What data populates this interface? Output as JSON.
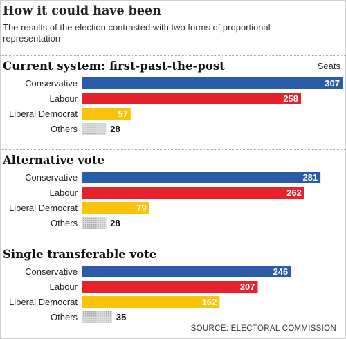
{
  "header": {
    "title": "How it could have been",
    "subtitle": "The results of the election contrasted with two forms of proportional representation"
  },
  "units_label": "Seats",
  "source": "SOURCE: ELECTORAL COMMISSION",
  "colors": {
    "Conservative": "#2a5caa",
    "Labour": "#e5222b",
    "Liberal Democrat": "#fcc30b",
    "Others": "#c4c4c4",
    "light_text": "#ffffff",
    "dark_text": "#111111"
  },
  "chart_data": [
    {
      "type": "bar",
      "orientation": "horizontal",
      "title": "Current system: first-past-the-post",
      "categories": [
        "Conservative",
        "Labour",
        "Liberal Democrat",
        "Others"
      ],
      "values": [
        307,
        258,
        57,
        28
      ]
    },
    {
      "type": "bar",
      "orientation": "horizontal",
      "title": "Alternative vote",
      "categories": [
        "Conservative",
        "Labour",
        "Liberal Democrat",
        "Others"
      ],
      "values": [
        281,
        262,
        79,
        28
      ]
    },
    {
      "type": "bar",
      "orientation": "horizontal",
      "title": "Single transferable vote",
      "categories": [
        "Conservative",
        "Labour",
        "Liberal Democrat",
        "Others"
      ],
      "values": [
        246,
        207,
        162,
        35
      ]
    }
  ]
}
